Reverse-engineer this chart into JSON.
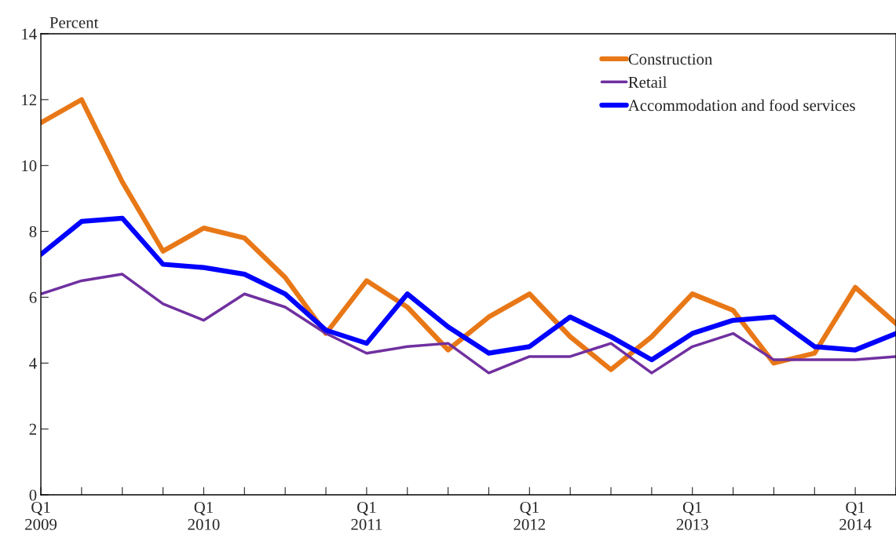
{
  "chart_data": {
    "type": "line",
    "ylabel": "Percent",
    "categories": [
      "Q1\n2009",
      null,
      null,
      null,
      "Q1\n2010",
      null,
      null,
      null,
      "Q1\n2011",
      null,
      null,
      null,
      "Q1\n2012",
      null,
      null,
      null,
      "Q1\n2013",
      null,
      null,
      null,
      "Q1\n2014",
      null
    ],
    "series": [
      {
        "name": "Construction",
        "color": "#e87817",
        "values": [
          11.3,
          12.0,
          9.5,
          7.4,
          8.1,
          7.8,
          6.6,
          4.9,
          6.5,
          5.7,
          4.4,
          5.4,
          6.1,
          4.8,
          3.8,
          4.8,
          6.1,
          5.6,
          4.0,
          4.3,
          6.3,
          5.2
        ]
      },
      {
        "name": "Retail",
        "color": "#7030a0",
        "values": [
          6.1,
          6.5,
          6.7,
          5.8,
          5.3,
          6.1,
          5.7,
          4.9,
          4.3,
          4.5,
          4.6,
          3.7,
          4.2,
          4.2,
          4.6,
          3.7,
          4.5,
          4.9,
          4.1,
          4.1,
          4.1,
          4.2
        ]
      },
      {
        "name": "Accommodation and food services",
        "color": "#0000ff",
        "values": [
          7.3,
          8.3,
          8.4,
          7.0,
          6.9,
          6.7,
          6.1,
          5.0,
          4.6,
          6.1,
          5.1,
          4.3,
          4.5,
          5.4,
          4.8,
          4.1,
          4.9,
          5.3,
          5.4,
          4.5,
          4.4,
          4.9
        ]
      }
    ],
    "ylim": [
      0,
      14
    ],
    "yticks": [
      0,
      2,
      4,
      6,
      8,
      10,
      12,
      14
    ],
    "grid": false,
    "legend": "top right"
  }
}
